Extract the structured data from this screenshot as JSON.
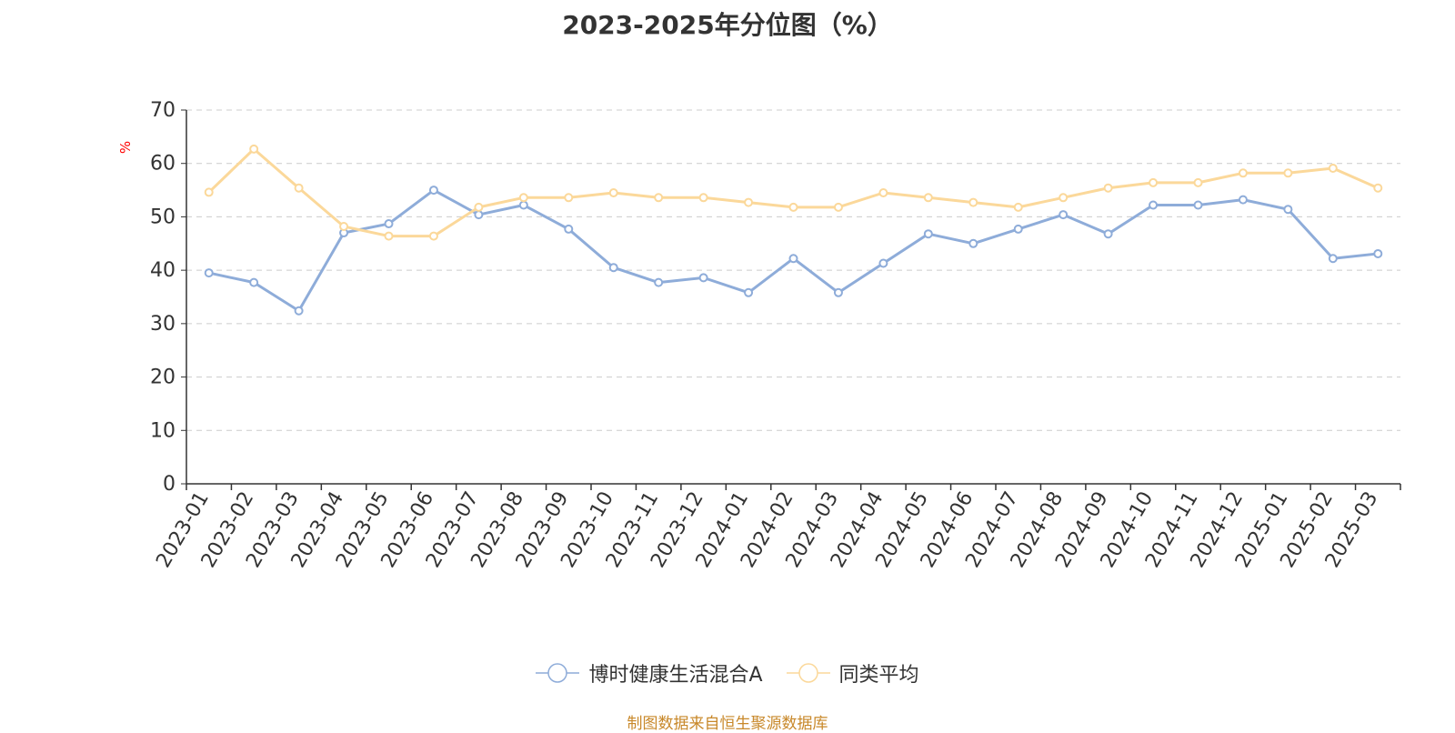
{
  "chart_data": {
    "type": "line",
    "title": "2023-2025年分位图（%）",
    "ylabel": "%",
    "ylim": [
      0,
      70
    ],
    "y_ticks": [
      0,
      10,
      20,
      30,
      40,
      50,
      60,
      70
    ],
    "grid": true,
    "legend_position": "bottom",
    "categories": [
      "2023-01",
      "2023-02",
      "2023-03",
      "2023-04",
      "2023-05",
      "2023-06",
      "2023-07",
      "2023-08",
      "2023-09",
      "2023-10",
      "2023-11",
      "2023-12",
      "2024-01",
      "2024-02",
      "2024-03",
      "2024-04",
      "2024-05",
      "2024-06",
      "2024-07",
      "2024-08",
      "2024-09",
      "2024-10",
      "2024-11",
      "2024-12",
      "2025-01",
      "2025-02",
      "2025-03"
    ],
    "series": [
      {
        "name": "博时健康生活混合A",
        "color": "#8eacd9",
        "values": [
          39.5,
          37.7,
          32.4,
          47.0,
          48.7,
          55.0,
          50.4,
          52.2,
          47.7,
          40.5,
          37.7,
          38.6,
          35.8,
          42.2,
          35.8,
          41.3,
          46.8,
          45.0,
          47.7,
          50.4,
          46.8,
          52.2,
          52.2,
          53.2,
          51.4,
          42.2,
          43.1
        ]
      },
      {
        "name": "同类平均",
        "color": "#fbd89a",
        "values": [
          54.6,
          62.7,
          55.4,
          48.2,
          46.4,
          46.4,
          51.8,
          53.6,
          53.6,
          54.5,
          53.6,
          53.6,
          52.7,
          51.8,
          51.8,
          54.5,
          53.6,
          52.7,
          51.8,
          53.6,
          55.4,
          56.4,
          56.4,
          58.2,
          58.2,
          59.1,
          55.4
        ]
      }
    ]
  },
  "axis_colors": {
    "axis_line": "#333333",
    "grid_line": "#cccccc",
    "tick_label": "#333333",
    "unit_label": "#ff0000"
  },
  "source_text": "制图数据来自恒生聚源数据库"
}
